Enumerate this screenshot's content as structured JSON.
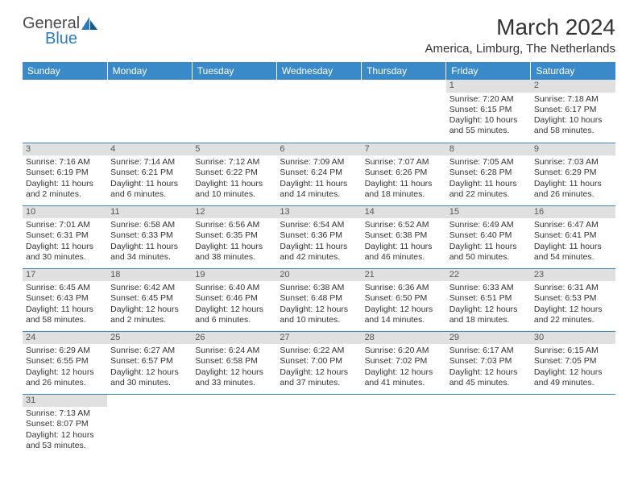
{
  "logo": {
    "general": "General",
    "blue": "Blue"
  },
  "title": "March 2024",
  "location": "America, Limburg, The Netherlands",
  "day_headers": [
    "Sunday",
    "Monday",
    "Tuesday",
    "Wednesday",
    "Thursday",
    "Friday",
    "Saturday"
  ],
  "colors": {
    "header_bg": "#3a8ac9",
    "header_text": "#ffffff",
    "daynum_bg": "#e0e0e0",
    "border": "#3a8ac9",
    "logo_blue": "#2b7bbf"
  },
  "weeks": [
    [
      null,
      null,
      null,
      null,
      null,
      {
        "n": "1",
        "sr": "Sunrise: 7:20 AM",
        "ss": "Sunset: 6:15 PM",
        "d1": "Daylight: 10 hours",
        "d2": "and 55 minutes."
      },
      {
        "n": "2",
        "sr": "Sunrise: 7:18 AM",
        "ss": "Sunset: 6:17 PM",
        "d1": "Daylight: 10 hours",
        "d2": "and 58 minutes."
      }
    ],
    [
      {
        "n": "3",
        "sr": "Sunrise: 7:16 AM",
        "ss": "Sunset: 6:19 PM",
        "d1": "Daylight: 11 hours",
        "d2": "and 2 minutes."
      },
      {
        "n": "4",
        "sr": "Sunrise: 7:14 AM",
        "ss": "Sunset: 6:21 PM",
        "d1": "Daylight: 11 hours",
        "d2": "and 6 minutes."
      },
      {
        "n": "5",
        "sr": "Sunrise: 7:12 AM",
        "ss": "Sunset: 6:22 PM",
        "d1": "Daylight: 11 hours",
        "d2": "and 10 minutes."
      },
      {
        "n": "6",
        "sr": "Sunrise: 7:09 AM",
        "ss": "Sunset: 6:24 PM",
        "d1": "Daylight: 11 hours",
        "d2": "and 14 minutes."
      },
      {
        "n": "7",
        "sr": "Sunrise: 7:07 AM",
        "ss": "Sunset: 6:26 PM",
        "d1": "Daylight: 11 hours",
        "d2": "and 18 minutes."
      },
      {
        "n": "8",
        "sr": "Sunrise: 7:05 AM",
        "ss": "Sunset: 6:28 PM",
        "d1": "Daylight: 11 hours",
        "d2": "and 22 minutes."
      },
      {
        "n": "9",
        "sr": "Sunrise: 7:03 AM",
        "ss": "Sunset: 6:29 PM",
        "d1": "Daylight: 11 hours",
        "d2": "and 26 minutes."
      }
    ],
    [
      {
        "n": "10",
        "sr": "Sunrise: 7:01 AM",
        "ss": "Sunset: 6:31 PM",
        "d1": "Daylight: 11 hours",
        "d2": "and 30 minutes."
      },
      {
        "n": "11",
        "sr": "Sunrise: 6:58 AM",
        "ss": "Sunset: 6:33 PM",
        "d1": "Daylight: 11 hours",
        "d2": "and 34 minutes."
      },
      {
        "n": "12",
        "sr": "Sunrise: 6:56 AM",
        "ss": "Sunset: 6:35 PM",
        "d1": "Daylight: 11 hours",
        "d2": "and 38 minutes."
      },
      {
        "n": "13",
        "sr": "Sunrise: 6:54 AM",
        "ss": "Sunset: 6:36 PM",
        "d1": "Daylight: 11 hours",
        "d2": "and 42 minutes."
      },
      {
        "n": "14",
        "sr": "Sunrise: 6:52 AM",
        "ss": "Sunset: 6:38 PM",
        "d1": "Daylight: 11 hours",
        "d2": "and 46 minutes."
      },
      {
        "n": "15",
        "sr": "Sunrise: 6:49 AM",
        "ss": "Sunset: 6:40 PM",
        "d1": "Daylight: 11 hours",
        "d2": "and 50 minutes."
      },
      {
        "n": "16",
        "sr": "Sunrise: 6:47 AM",
        "ss": "Sunset: 6:41 PM",
        "d1": "Daylight: 11 hours",
        "d2": "and 54 minutes."
      }
    ],
    [
      {
        "n": "17",
        "sr": "Sunrise: 6:45 AM",
        "ss": "Sunset: 6:43 PM",
        "d1": "Daylight: 11 hours",
        "d2": "and 58 minutes."
      },
      {
        "n": "18",
        "sr": "Sunrise: 6:42 AM",
        "ss": "Sunset: 6:45 PM",
        "d1": "Daylight: 12 hours",
        "d2": "and 2 minutes."
      },
      {
        "n": "19",
        "sr": "Sunrise: 6:40 AM",
        "ss": "Sunset: 6:46 PM",
        "d1": "Daylight: 12 hours",
        "d2": "and 6 minutes."
      },
      {
        "n": "20",
        "sr": "Sunrise: 6:38 AM",
        "ss": "Sunset: 6:48 PM",
        "d1": "Daylight: 12 hours",
        "d2": "and 10 minutes."
      },
      {
        "n": "21",
        "sr": "Sunrise: 6:36 AM",
        "ss": "Sunset: 6:50 PM",
        "d1": "Daylight: 12 hours",
        "d2": "and 14 minutes."
      },
      {
        "n": "22",
        "sr": "Sunrise: 6:33 AM",
        "ss": "Sunset: 6:51 PM",
        "d1": "Daylight: 12 hours",
        "d2": "and 18 minutes."
      },
      {
        "n": "23",
        "sr": "Sunrise: 6:31 AM",
        "ss": "Sunset: 6:53 PM",
        "d1": "Daylight: 12 hours",
        "d2": "and 22 minutes."
      }
    ],
    [
      {
        "n": "24",
        "sr": "Sunrise: 6:29 AM",
        "ss": "Sunset: 6:55 PM",
        "d1": "Daylight: 12 hours",
        "d2": "and 26 minutes."
      },
      {
        "n": "25",
        "sr": "Sunrise: 6:27 AM",
        "ss": "Sunset: 6:57 PM",
        "d1": "Daylight: 12 hours",
        "d2": "and 30 minutes."
      },
      {
        "n": "26",
        "sr": "Sunrise: 6:24 AM",
        "ss": "Sunset: 6:58 PM",
        "d1": "Daylight: 12 hours",
        "d2": "and 33 minutes."
      },
      {
        "n": "27",
        "sr": "Sunrise: 6:22 AM",
        "ss": "Sunset: 7:00 PM",
        "d1": "Daylight: 12 hours",
        "d2": "and 37 minutes."
      },
      {
        "n": "28",
        "sr": "Sunrise: 6:20 AM",
        "ss": "Sunset: 7:02 PM",
        "d1": "Daylight: 12 hours",
        "d2": "and 41 minutes."
      },
      {
        "n": "29",
        "sr": "Sunrise: 6:17 AM",
        "ss": "Sunset: 7:03 PM",
        "d1": "Daylight: 12 hours",
        "d2": "and 45 minutes."
      },
      {
        "n": "30",
        "sr": "Sunrise: 6:15 AM",
        "ss": "Sunset: 7:05 PM",
        "d1": "Daylight: 12 hours",
        "d2": "and 49 minutes."
      }
    ],
    [
      {
        "n": "31",
        "sr": "Sunrise: 7:13 AM",
        "ss": "Sunset: 8:07 PM",
        "d1": "Daylight: 12 hours",
        "d2": "and 53 minutes."
      },
      null,
      null,
      null,
      null,
      null,
      null
    ]
  ]
}
